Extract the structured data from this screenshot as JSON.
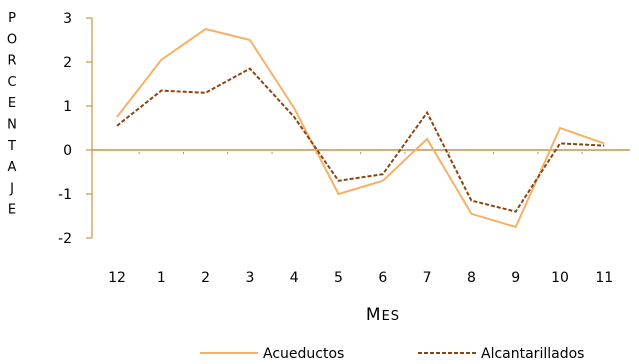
{
  "chart_data": {
    "type": "line",
    "categories": [
      "12",
      "1",
      "2",
      "3",
      "4",
      "5",
      "6",
      "7",
      "8",
      "9",
      "10",
      "11"
    ],
    "series": [
      {
        "name": "Acueductos",
        "values": [
          0.75,
          2.05,
          2.75,
          2.5,
          0.95,
          -1.0,
          -0.7,
          0.25,
          -1.45,
          -1.75,
          0.5,
          0.15
        ],
        "color": "#F5B266",
        "style": "solid"
      },
      {
        "name": "Alcantarillados",
        "values": [
          0.55,
          1.35,
          1.3,
          1.85,
          0.75,
          -0.7,
          -0.55,
          0.85,
          -1.15,
          -1.4,
          0.15,
          0.1
        ],
        "color": "#8B4513",
        "style": "dashed"
      }
    ],
    "ylim": [
      -2,
      3
    ],
    "yticks": [
      "3",
      "2",
      "1",
      "0",
      "-1",
      "-2"
    ],
    "ylabel": "PORCENTAJE",
    "xlabel": "Mes",
    "title": "",
    "grid": false,
    "zero_line_color": "#C8963C",
    "legend_position": "bottom"
  }
}
